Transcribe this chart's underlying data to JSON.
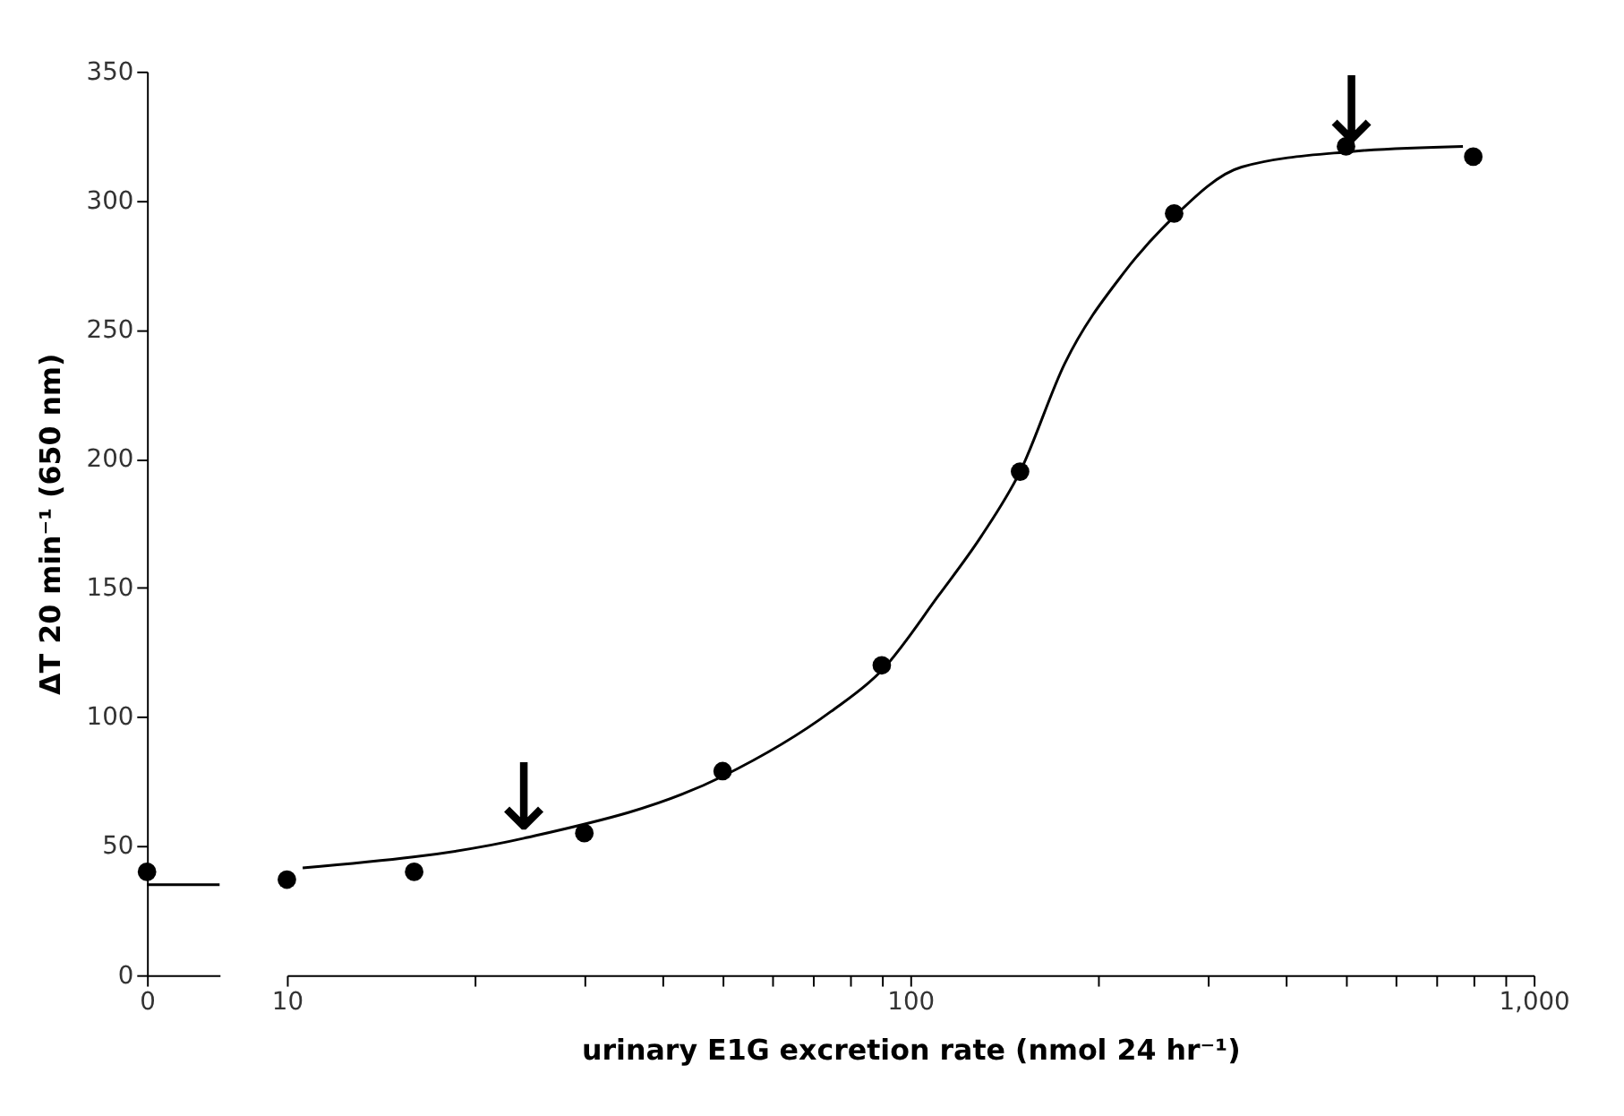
{
  "chart_data": [
    {
      "type": "scatter",
      "ylabel": "ΔT 20 min⁻¹ (650 nm)",
      "categories": [
        "0"
      ],
      "ylim": [
        0,
        350
      ],
      "yticks": [
        0,
        50,
        100,
        150,
        200,
        250,
        300,
        350
      ],
      "grid": false,
      "ref_lines": [
        {
          "axis": "y",
          "value": 35,
          "color": "#000000"
        }
      ],
      "series": [
        {
          "type": "scatter",
          "marker": "circle",
          "color": "#000000",
          "values": [
            40
          ]
        }
      ]
    },
    {
      "type": "scatter",
      "xlabel": "urinary E1G excretion rate (nmol 24 hr⁻¹)",
      "log": "x",
      "xlim": [
        10,
        1000
      ],
      "xticks": [
        10,
        {
          "value": 20,
          "label": null
        },
        {
          "value": 30,
          "label": null
        },
        {
          "value": 40,
          "label": null
        },
        {
          "value": 50,
          "label": null
        },
        {
          "value": 60,
          "label": null
        },
        {
          "value": 70,
          "label": null
        },
        {
          "value": 80,
          "label": null
        },
        {
          "value": 90,
          "label": null
        },
        100,
        {
          "value": 200,
          "label": null
        },
        {
          "value": 300,
          "label": null
        },
        {
          "value": 400,
          "label": null
        },
        {
          "value": 500,
          "label": null
        },
        {
          "value": 600,
          "label": null
        },
        {
          "value": 700,
          "label": null
        },
        {
          "value": 800,
          "label": null
        },
        {
          "value": 900,
          "label": null
        },
        {
          "value": 1000,
          "label": "1,000"
        }
      ],
      "ylim": [
        0,
        350
      ],
      "tick_labels": "x",
      "grid": false,
      "annotations": [
        {
          "text": "↓",
          "x": 24,
          "y": 53
        },
        {
          "text": "↓",
          "x": 510,
          "y": 319
        }
      ],
      "series": [
        {
          "type": "scatter",
          "marker": "circle",
          "color": "#000000",
          "x": [
            10,
            16,
            30,
            50,
            90,
            150,
            265,
            500,
            800
          ],
          "values": [
            37,
            40,
            55,
            79,
            120,
            195,
            295,
            321,
            317
          ]
        },
        {
          "type": "line",
          "color": "#000000",
          "x": [
            10.6,
            24,
            50,
            74.5,
            90,
            111,
            130,
            150,
            177,
            220,
            263,
            340,
            510,
            770
          ],
          "values": [
            41.5,
            53,
            77,
            102,
            118,
            147,
            170,
            195,
            237,
            272,
            293,
            313,
            319,
            321
          ]
        }
      ]
    }
  ]
}
